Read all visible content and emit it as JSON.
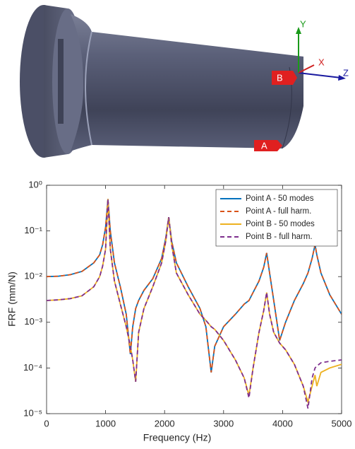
{
  "model": {
    "point_labels": [
      "A",
      "B"
    ],
    "axis_labels": [
      "X",
      "Y",
      "Z"
    ]
  },
  "chart_data": {
    "type": "line",
    "x_label": "Frequency (Hz)",
    "y_label": "FRF (mm/N)",
    "log_y": true,
    "legend": "upper right",
    "grid": false,
    "xlim": [
      0,
      5000
    ],
    "xticks": [
      0,
      1000,
      2000,
      3000,
      4000,
      5000
    ],
    "ylim": [
      1e-05,
      1
    ],
    "yticks": [
      {
        "value": 1e-05,
        "label": "10⁻⁵"
      },
      {
        "value": 0.0001,
        "label": "10⁻⁴"
      },
      {
        "value": 0.001,
        "label": "10⁻³"
      },
      {
        "value": 0.01,
        "label": "10⁻²"
      },
      {
        "value": 0.1,
        "label": "10⁻¹"
      },
      {
        "value": 1,
        "label": "10⁰"
      }
    ],
    "x": [
      0,
      200,
      400,
      600,
      800,
      900,
      950,
      1000,
      1040,
      1080,
      1150,
      1250,
      1350,
      1420,
      1460,
      1510,
      1560,
      1650,
      1800,
      1950,
      2020,
      2070,
      2120,
      2200,
      2400,
      2600,
      2700,
      2790,
      2850,
      3000,
      3200,
      3350,
      3430,
      3500,
      3600,
      3680,
      3730,
      3780,
      3850,
      3950,
      4050,
      4200,
      4350,
      4430,
      4500,
      4550,
      4580,
      4650,
      4800,
      5000
    ],
    "series": [
      {
        "name": "Point A - 50 modes",
        "color": "#0072bd",
        "dashed": false,
        "values": [
          0.01,
          0.0102,
          0.011,
          0.013,
          0.02,
          0.03,
          0.05,
          0.12,
          0.5,
          0.1,
          0.02,
          0.006,
          0.0015,
          0.0002,
          0.0008,
          0.002,
          0.003,
          0.005,
          0.009,
          0.025,
          0.07,
          0.2,
          0.06,
          0.02,
          0.006,
          0.002,
          0.0008,
          8e-05,
          0.0003,
          0.0008,
          0.0015,
          0.0025,
          0.003,
          0.0045,
          0.008,
          0.016,
          0.033,
          0.012,
          0.003,
          0.0004,
          0.001,
          0.003,
          0.007,
          0.012,
          0.025,
          0.05,
          0.03,
          0.012,
          0.004,
          0.0015
        ]
      },
      {
        "name": "Point A - full harm.",
        "color": "#d95319",
        "dashed": true,
        "values": [
          0.01,
          0.0102,
          0.011,
          0.013,
          0.02,
          0.03,
          0.05,
          0.12,
          0.5,
          0.1,
          0.02,
          0.006,
          0.0015,
          0.0002,
          0.0008,
          0.002,
          0.003,
          0.005,
          0.009,
          0.025,
          0.07,
          0.2,
          0.06,
          0.02,
          0.006,
          0.002,
          0.0008,
          8e-05,
          0.0003,
          0.0008,
          0.0015,
          0.0025,
          0.003,
          0.0045,
          0.008,
          0.016,
          0.033,
          0.012,
          0.003,
          0.0004,
          0.001,
          0.003,
          0.007,
          0.012,
          0.025,
          0.05,
          0.03,
          0.012,
          0.004,
          0.0015
        ]
      },
      {
        "name": "Point B - 50 modes",
        "color": "#edb120",
        "dashed": false,
        "values": [
          0.003,
          0.0031,
          0.0033,
          0.0038,
          0.006,
          0.01,
          0.017,
          0.04,
          0.5,
          0.04,
          0.008,
          0.0025,
          0.0008,
          0.0003,
          0.00015,
          5e-05,
          0.0006,
          0.002,
          0.006,
          0.02,
          0.06,
          0.2,
          0.05,
          0.012,
          0.004,
          0.0015,
          0.0011,
          0.0008,
          0.0007,
          0.0004,
          0.00015,
          6e-05,
          2.5e-05,
          0.0001,
          0.0006,
          0.0018,
          0.0045,
          0.0015,
          0.0006,
          0.00035,
          0.00025,
          0.00012,
          4e-05,
          1.8e-05,
          4e-05,
          7e-05,
          4e-05,
          8e-05,
          0.0001,
          0.00012
        ]
      },
      {
        "name": "Point B - full harm.",
        "color": "#7e2f8e",
        "dashed": true,
        "values": [
          0.003,
          0.0031,
          0.0033,
          0.0038,
          0.006,
          0.01,
          0.017,
          0.04,
          0.5,
          0.04,
          0.008,
          0.0025,
          0.0008,
          0.0003,
          0.00015,
          5e-05,
          0.0006,
          0.002,
          0.006,
          0.02,
          0.06,
          0.2,
          0.05,
          0.012,
          0.004,
          0.0015,
          0.0011,
          0.0008,
          0.0007,
          0.0004,
          0.00015,
          6e-05,
          2.2e-05,
          0.0001,
          0.0006,
          0.0018,
          0.0045,
          0.0015,
          0.0006,
          0.00035,
          0.00025,
          0.00012,
          4e-05,
          1.3e-05,
          6e-05,
          0.0001,
          0.00011,
          0.00013,
          0.00014,
          0.00015
        ]
      }
    ]
  }
}
